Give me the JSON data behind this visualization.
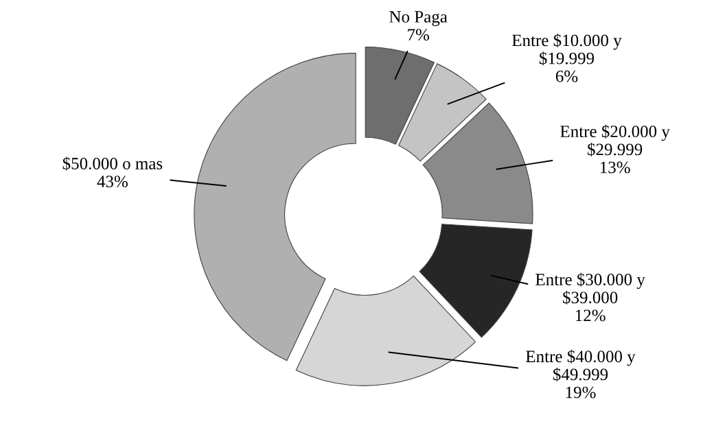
{
  "chart_data": {
    "type": "donut",
    "categories": [
      "No Paga",
      "Entre $10.000 y $19.999",
      "Entre $20.000 y $29.999",
      "Entre $30.000 y $39.000",
      "Entre $40.000 y $49.999",
      "$50.000 o mas"
    ],
    "values": [
      7,
      6,
      13,
      12,
      19,
      43
    ],
    "value_labels": [
      "7%",
      "6%",
      "13%",
      "12%",
      "19%",
      "43%"
    ],
    "colors": [
      "#6e6e6e",
      "#c4c4c4",
      "#8a8a8a",
      "#262626",
      "#d6d6d6",
      "#b0b0b0"
    ],
    "legend": false
  }
}
